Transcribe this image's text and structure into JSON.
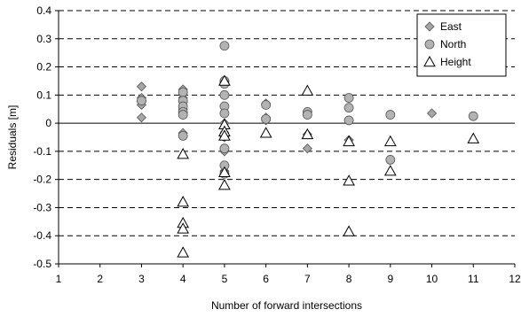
{
  "chart_data": {
    "type": "scatter",
    "title": "",
    "xlabel": "Number of forward intersections",
    "ylabel": "Residuals [m]",
    "xlim": [
      1,
      12
    ],
    "ylim": [
      -0.5,
      0.4
    ],
    "x_ticks": [
      1,
      2,
      3,
      4,
      5,
      6,
      7,
      8,
      9,
      10,
      11,
      12
    ],
    "y_ticks": [
      0.4,
      0.3,
      0.2,
      0.1,
      0,
      -0.1,
      -0.2,
      -0.3,
      -0.4,
      -0.5
    ],
    "y_tick_labels": [
      "0.4",
      "0.3",
      "0.2",
      "0.1",
      "0",
      "-0.1",
      "-0.2",
      "-0.3",
      "-0.4",
      "-0.5"
    ],
    "grid": "horizontal dashed",
    "legend_position": "top-right",
    "series": [
      {
        "name": "East",
        "marker": "diamond",
        "color": "#a6a6a6",
        "points": [
          [
            3,
            0.13
          ],
          [
            3,
            0.09
          ],
          [
            3,
            0.08
          ],
          [
            3,
            0.065
          ],
          [
            3,
            0.02
          ],
          [
            4,
            0.12
          ],
          [
            4,
            0.11
          ],
          [
            4,
            0.09
          ],
          [
            4,
            0.075
          ],
          [
            4,
            0.05
          ],
          [
            4,
            0.035
          ],
          [
            4,
            -0.035
          ],
          [
            5,
            0.15
          ],
          [
            5,
            0.145
          ],
          [
            5,
            0.14
          ],
          [
            5,
            0.0
          ],
          [
            5,
            -0.05
          ],
          [
            5,
            -0.1
          ],
          [
            5,
            -0.17
          ],
          [
            6,
            0.07
          ],
          [
            6,
            0.02
          ],
          [
            6,
            0.01
          ],
          [
            7,
            -0.04
          ],
          [
            7,
            -0.09
          ],
          [
            8,
            -0.06
          ],
          [
            10,
            0.035
          ]
        ]
      },
      {
        "name": "North",
        "color": "#b3b3b3",
        "marker": "circle",
        "points": [
          [
            3,
            0.08
          ],
          [
            4,
            0.11
          ],
          [
            4,
            0.08
          ],
          [
            4,
            0.06
          ],
          [
            4,
            0.04
          ],
          [
            4,
            0.03
          ],
          [
            4,
            -0.045
          ],
          [
            5,
            0.275
          ],
          [
            5,
            0.15
          ],
          [
            5,
            0.14
          ],
          [
            5,
            0.1
          ],
          [
            5,
            0.06
          ],
          [
            5,
            0.035
          ],
          [
            5,
            -0.04
          ],
          [
            5,
            -0.09
          ],
          [
            5,
            -0.15
          ],
          [
            5,
            -0.18
          ],
          [
            6,
            0.065
          ],
          [
            6,
            0.015
          ],
          [
            7,
            0.04
          ],
          [
            7,
            0.03
          ],
          [
            8,
            0.09
          ],
          [
            8,
            0.055
          ],
          [
            8,
            0.01
          ],
          [
            9,
            0.03
          ],
          [
            9,
            -0.13
          ],
          [
            11,
            0.025
          ]
        ]
      },
      {
        "name": "Height",
        "marker": "triangle",
        "color": "#ffffff",
        "points": [
          [
            4,
            -0.11
          ],
          [
            4,
            -0.28
          ],
          [
            4,
            -0.355
          ],
          [
            4,
            -0.375
          ],
          [
            4,
            -0.46
          ],
          [
            5,
            0.15
          ],
          [
            5,
            -0.005
          ],
          [
            5,
            -0.03
          ],
          [
            5,
            -0.045
          ],
          [
            5,
            -0.175
          ],
          [
            5,
            -0.22
          ],
          [
            6,
            -0.035
          ],
          [
            7,
            0.115
          ],
          [
            7,
            -0.04
          ],
          [
            8,
            -0.065
          ],
          [
            8,
            -0.205
          ],
          [
            8,
            -0.385
          ],
          [
            9,
            -0.065
          ],
          [
            9,
            -0.17
          ],
          [
            11,
            -0.055
          ]
        ]
      }
    ]
  }
}
